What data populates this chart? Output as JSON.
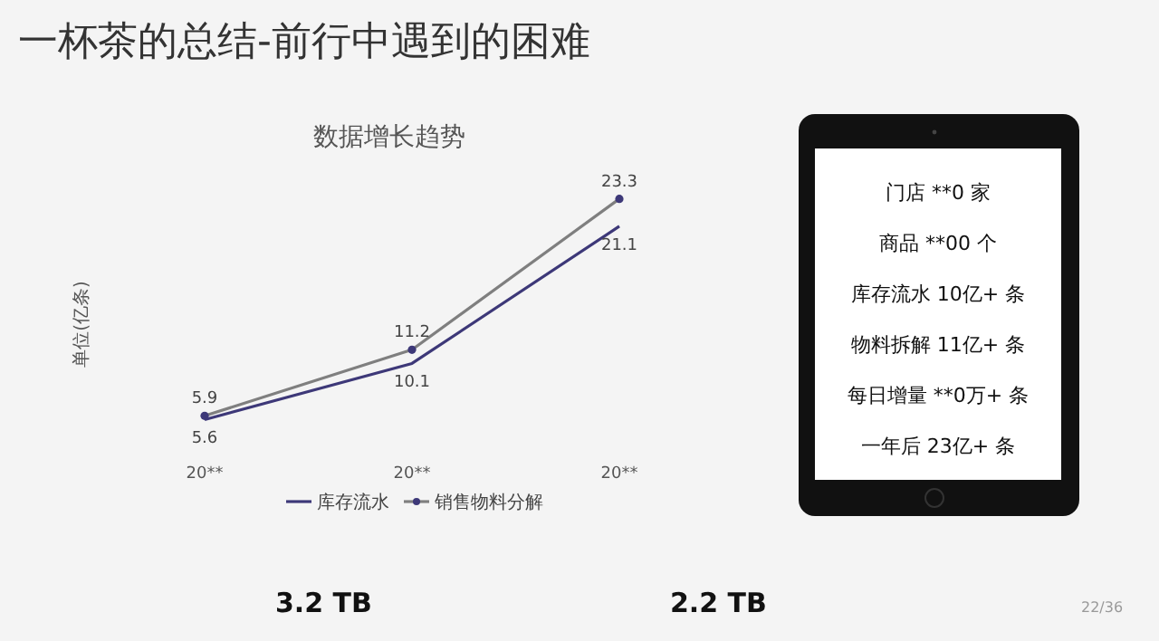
{
  "chart_data": [
    {
      "type": "line",
      "title": "一杯茶的总结-前行中遇到的困难",
      "subtitle": "数据增长趋势",
      "ylabel": "单位(亿条)",
      "categories": [
        "20**",
        "20**",
        "20**"
      ],
      "series": [
        {
          "name": "库存流水",
          "color": "#3d3878",
          "values": [
            5.6,
            10.1,
            21.1
          ],
          "marker": "none"
        },
        {
          "name": "销售物料分解",
          "color": "#7f7f7f",
          "values": [
            5.9,
            11.2,
            23.3
          ],
          "marker": "circle"
        }
      ],
      "relative": false,
      "data_labels": true,
      "legend": "bottom",
      "grid": false
    },
    {
      "type": "other",
      "annotations": [
        "门店 **0 家",
        "商品 **00 个",
        "库存流水 10亿+ 条",
        "物料拆解 11亿+ 条",
        "每日增量 **0万+ 条",
        "一年后 23亿+ 条"
      ]
    },
    {
      "type": "other",
      "annotations": [
        "3.2 TB",
        "2.2 TB",
        "22/36"
      ]
    }
  ]
}
